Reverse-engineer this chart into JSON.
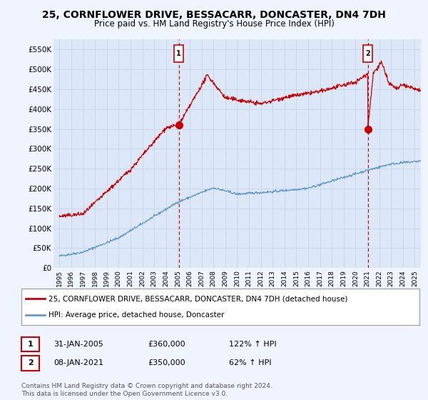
{
  "title": "25, CORNFLOWER DRIVE, BESSACARR, DONCASTER, DN4 7DH",
  "subtitle": "Price paid vs. HM Land Registry's House Price Index (HPI)",
  "title_fontsize": 10,
  "subtitle_fontsize": 8.5,
  "bg_color": "#f0f4ff",
  "plot_bg_color": "#dce8f8",
  "grid_color": "#c8d8ec",
  "red_color": "#cc0000",
  "blue_color": "#6699cc",
  "marker1_x": 2005.08,
  "marker1_y": 360000,
  "marker2_x": 2021.03,
  "marker2_y": 350000,
  "vline1_x": 2005.08,
  "vline2_x": 2021.03,
  "legend_line1": "25, CORNFLOWER DRIVE, BESSACARR, DONCASTER, DN4 7DH (detached house)",
  "legend_line2": "HPI: Average price, detached house, Doncaster",
  "table_row1": [
    "1",
    "31-JAN-2005",
    "£360,000",
    "122% ↑ HPI"
  ],
  "table_row2": [
    "2",
    "08-JAN-2021",
    "£350,000",
    "62% ↑ HPI"
  ],
  "footer": "Contains HM Land Registry data © Crown copyright and database right 2024.\nThis data is licensed under the Open Government Licence v3.0.",
  "ylim_min": 0,
  "ylim_max": 575000,
  "xlim_min": 1994.5,
  "xlim_max": 2025.5,
  "yticks": [
    0,
    50000,
    100000,
    150000,
    200000,
    250000,
    300000,
    350000,
    400000,
    450000,
    500000,
    550000
  ],
  "ytick_labels": [
    "£0",
    "£50K",
    "£100K",
    "£150K",
    "£200K",
    "£250K",
    "£300K",
    "£350K",
    "£400K",
    "£450K",
    "£500K",
    "£550K"
  ],
  "xticks": [
    1995,
    1996,
    1997,
    1998,
    1999,
    2000,
    2001,
    2002,
    2003,
    2004,
    2005,
    2006,
    2007,
    2008,
    2009,
    2010,
    2011,
    2012,
    2013,
    2014,
    2015,
    2016,
    2017,
    2018,
    2019,
    2020,
    2021,
    2022,
    2023,
    2024,
    2025
  ]
}
